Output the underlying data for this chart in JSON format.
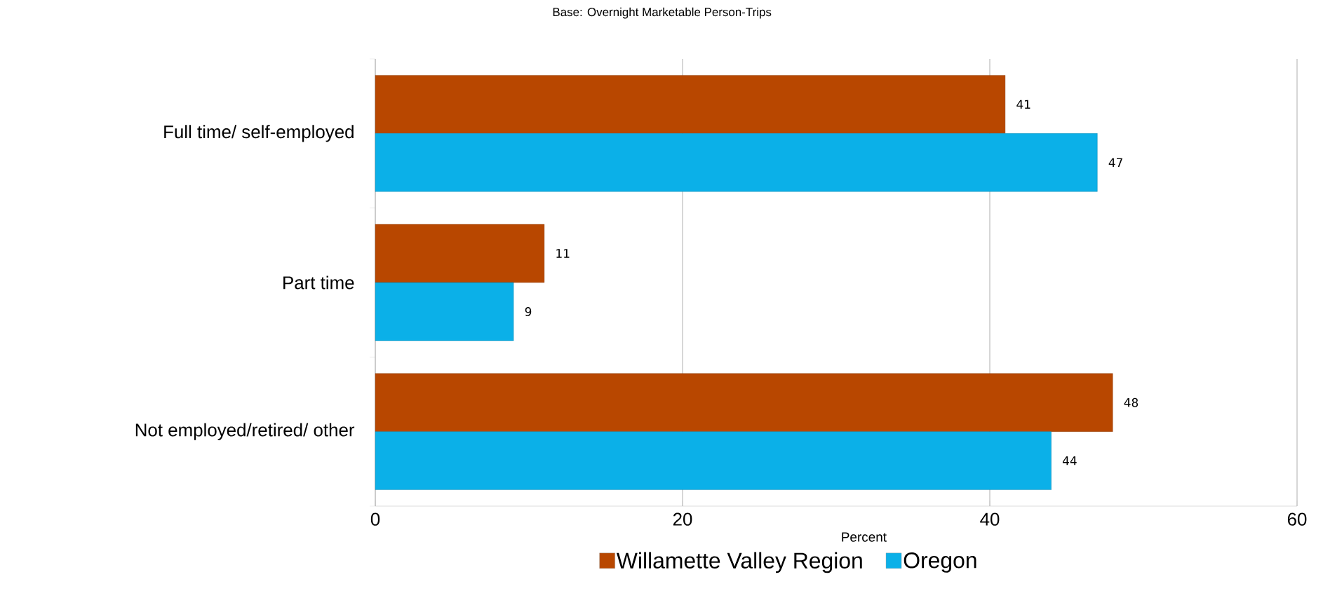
{
  "chart_data": {
    "type": "bar",
    "orientation": "horizontal",
    "title": "Base: Overnight Marketable Person-Trips",
    "xlabel": "Percent",
    "categories": [
      "Full time/ self-employed",
      "Part time",
      "Not employed/retired/ other"
    ],
    "series": [
      {
        "name": "Willamette Valley Region",
        "color": "#b84700",
        "values": [
          41,
          11,
          48
        ]
      },
      {
        "name": "Oregon",
        "color": "#0bb0e8",
        "values": [
          47,
          9,
          44
        ]
      }
    ],
    "xlim": [
      0,
      60
    ],
    "xticks": [
      0,
      20,
      40,
      60
    ],
    "grid": "x",
    "legend": "bottom",
    "data_labels": true
  }
}
